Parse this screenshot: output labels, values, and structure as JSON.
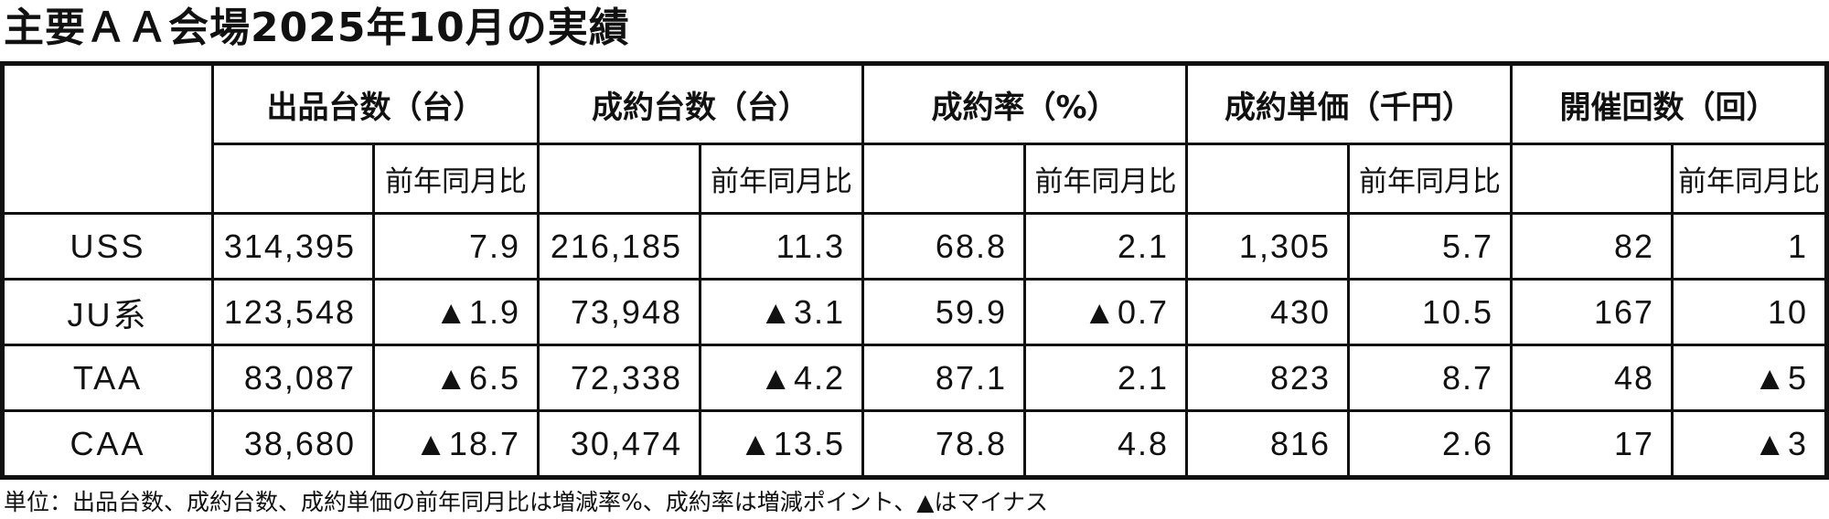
{
  "title": "主要ＡＡ会場2025年10月の実績",
  "table": {
    "groups": [
      "出品台数（台）",
      "成約台数（台）",
      "成約率（%）",
      "成約単価（千円）",
      "開催回数（回）"
    ],
    "sub_label": "前年同月比",
    "rows": [
      {
        "name": "USS",
        "values": [
          "314,395",
          "7.9",
          "216,185",
          "11.3",
          "68.8",
          "2.1",
          "1,305",
          "5.7",
          "82",
          "1"
        ]
      },
      {
        "name": "JU系",
        "values": [
          "123,548",
          "▲1.9",
          "73,948",
          "▲3.1",
          "59.9",
          "▲0.7",
          "430",
          "10.5",
          "167",
          "10"
        ]
      },
      {
        "name": "TAA",
        "values": [
          "83,087",
          "▲6.5",
          "72,338",
          "▲4.2",
          "87.1",
          "2.1",
          "823",
          "8.7",
          "48",
          "▲5"
        ]
      },
      {
        "name": "CAA",
        "values": [
          "38,680",
          "▲18.7",
          "30,474",
          "▲13.5",
          "78.8",
          "4.8",
          "816",
          "2.6",
          "17",
          "▲3"
        ]
      }
    ]
  },
  "footnote": "単位：出品台数、成約台数、成約単価の前年同月比は増減率%、成約率は増減ポイント、▲はマイナス"
}
